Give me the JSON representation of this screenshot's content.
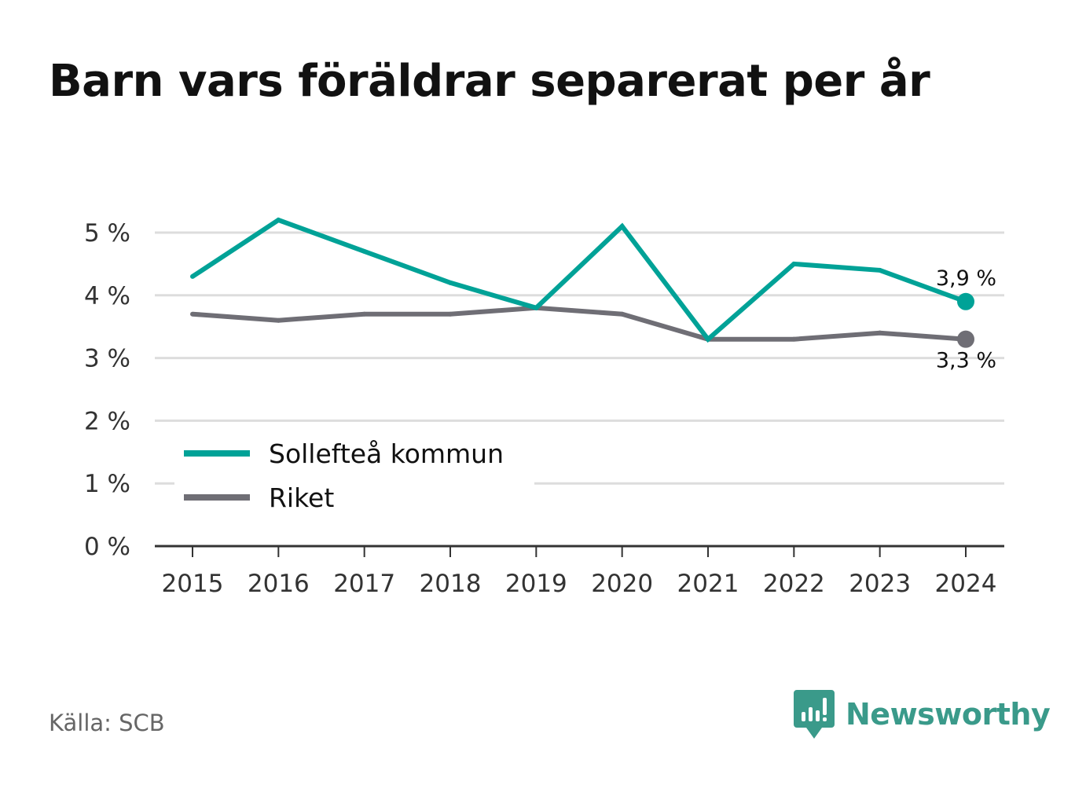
{
  "title": "Barn vars föräldrar separerat per år",
  "source": "Källa: SCB",
  "brand": {
    "name": "Newsworthy",
    "icon": "newsworthy-logo-icon",
    "color": "#3a9a8a"
  },
  "colors": {
    "solleftea": "#00a297",
    "riket": "#6f6e75",
    "grid": "#dddddd",
    "axis": "#333333"
  },
  "chart_data": {
    "type": "line",
    "title": "Barn vars föräldrar separerat per år",
    "xlabel": "",
    "ylabel": "",
    "x": [
      2015,
      2016,
      2017,
      2018,
      2019,
      2020,
      2021,
      2022,
      2023,
      2024
    ],
    "x_tick_labels": [
      "2015",
      "2016",
      "2017",
      "2018",
      "2019",
      "2020",
      "2021",
      "2022",
      "2023",
      "2024"
    ],
    "ylim": [
      0,
      5.5
    ],
    "y_ticks": [
      0,
      1,
      2,
      3,
      4,
      5
    ],
    "y_tick_labels": [
      "0 %",
      "1 %",
      "2 %",
      "3 %",
      "4 %",
      "5 %"
    ],
    "grid": true,
    "legend_position": "bottom-left",
    "series": [
      {
        "name": "Sollefteå kommun",
        "color": "#00a297",
        "values": [
          4.3,
          5.2,
          4.7,
          4.2,
          3.8,
          5.1,
          3.3,
          4.5,
          4.4,
          3.9
        ],
        "end_label": "3,9 %"
      },
      {
        "name": "Riket",
        "color": "#6f6e75",
        "values": [
          3.7,
          3.6,
          3.7,
          3.7,
          3.8,
          3.7,
          3.3,
          3.3,
          3.4,
          3.3
        ],
        "end_label": "3,3 %"
      }
    ]
  }
}
